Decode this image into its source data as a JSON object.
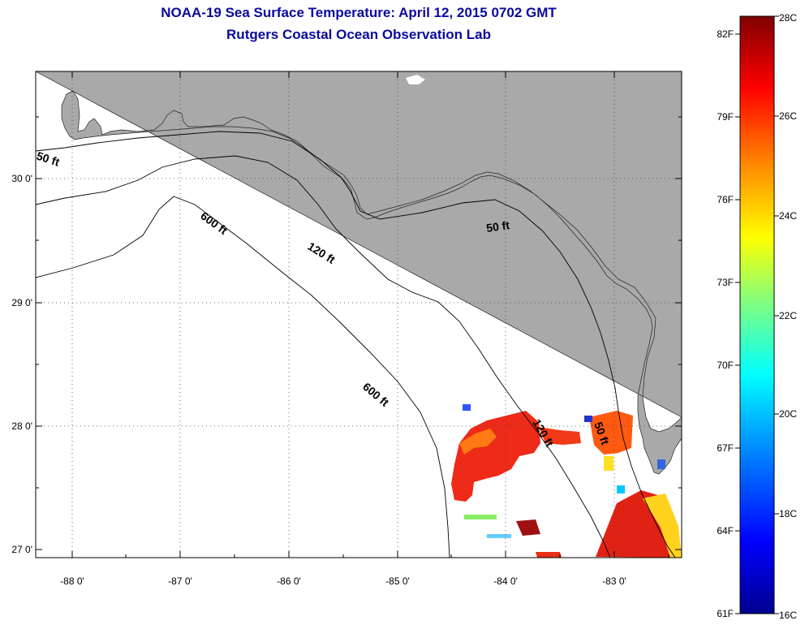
{
  "header": {
    "title": "NOAA-19 Sea Surface Temperature:  April 12, 2015 0702 GMT",
    "subtitle": "Rutgers Coastal Ocean Observation Lab"
  },
  "map": {
    "lat_labels": [
      "30 0'",
      "29 0'",
      "28 0'",
      "27 0'"
    ],
    "lon_labels": [
      "-88 0'",
      "-87 0'",
      "-86 0'",
      "-85 0'",
      "-84 0'",
      "-83 0'"
    ],
    "contours": {
      "c50_west": "50 ft",
      "c50_east": "50 ft",
      "c50_south": "50 ft",
      "c120_north": "120 ft",
      "c120_south": "120 ft",
      "c600_north": "600 ft",
      "c600_south": "600 ft"
    },
    "colors": {
      "land": "#a9a9a9",
      "sea": "#ffffff",
      "title": "#0a0a9e"
    }
  },
  "colorbar": {
    "fahrenheit": [
      "82F",
      "79F",
      "76F",
      "73F",
      "70F",
      "67F",
      "64F",
      "61F"
    ],
    "celsius": [
      "28C",
      "26C",
      "24C",
      "22C",
      "20C",
      "18C",
      "16C"
    ],
    "range_c": [
      16,
      28
    ],
    "stops": [
      "#00008f",
      "#0000ff",
      "#00a0ff",
      "#00ffff",
      "#80ff80",
      "#ffff00",
      "#ff8000",
      "#ff0000",
      "#800000"
    ]
  }
}
